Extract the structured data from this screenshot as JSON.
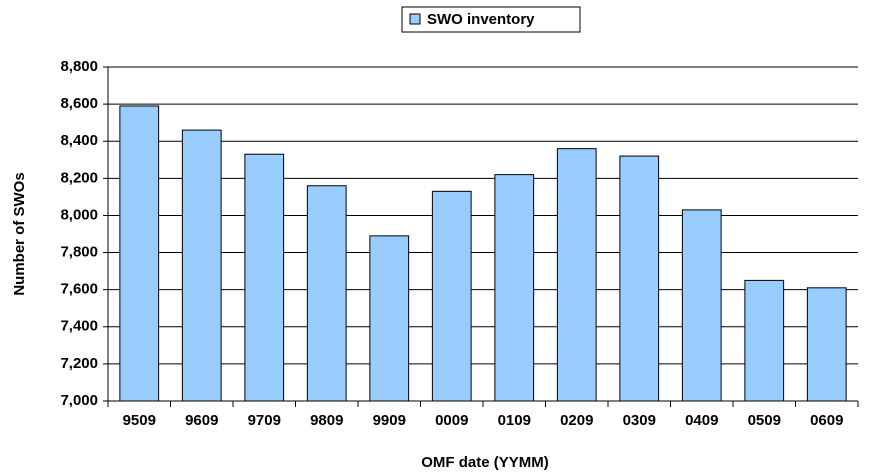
{
  "chart_data": {
    "type": "bar",
    "legend": "SWO inventory",
    "x_label": "OMF date (YYMM)",
    "y_label": "Number of SWOs",
    "categories": [
      "9509",
      "9609",
      "9709",
      "9809",
      "9909",
      "0009",
      "0109",
      "0209",
      "0309",
      "0409",
      "0509",
      "0609"
    ],
    "series": [
      {
        "name": "SWO inventory",
        "color": "#99ccff",
        "values": [
          8590,
          8460,
          8330,
          8160,
          7890,
          8130,
          8220,
          8360,
          8320,
          8030,
          7650,
          7610
        ]
      }
    ],
    "ylim": [
      7000,
      8800
    ],
    "yticks": [
      {
        "value": 7000,
        "label": "7,000"
      },
      {
        "value": 7200,
        "label": "7,200"
      },
      {
        "value": 7400,
        "label": "7,400"
      },
      {
        "value": 7600,
        "label": "7,600"
      },
      {
        "value": 7800,
        "label": "7,800"
      },
      {
        "value": 8000,
        "label": "8,000"
      },
      {
        "value": 8200,
        "label": "8,200"
      },
      {
        "value": 8400,
        "label": "8,400"
      },
      {
        "value": 8600,
        "label": "8,600"
      },
      {
        "value": 8800,
        "label": "8,800"
      }
    ],
    "grid": true
  }
}
